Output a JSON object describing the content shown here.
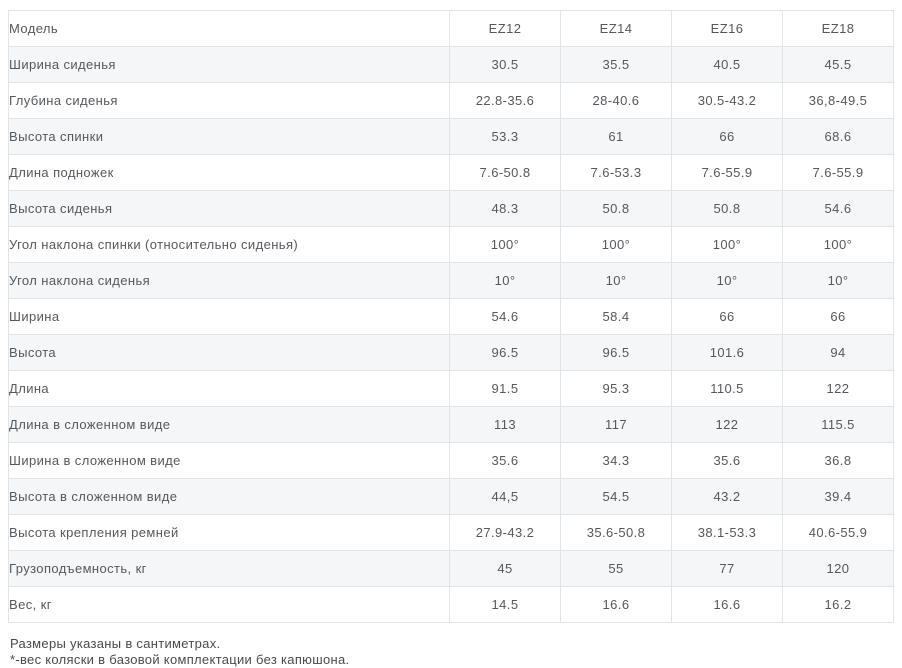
{
  "colors": {
    "stripe": "#f4f6f7",
    "border": "#e1e5e7",
    "text": "#55595d",
    "footnote": "#474b4e"
  },
  "table": {
    "header": {
      "label": "Модель",
      "columns": [
        "EZ12",
        "EZ14",
        "EZ16",
        "EZ18"
      ]
    },
    "rows": [
      {
        "label": "Ширина сиденья",
        "values": [
          "30.5",
          "35.5",
          "40.5",
          "45.5"
        ]
      },
      {
        "label": "Глубина сиденья",
        "values": [
          "22.8-35.6",
          "28-40.6",
          "30.5-43.2",
          "36,8-49.5"
        ]
      },
      {
        "label": "Высота спинки",
        "values": [
          "53.3",
          "61",
          "66",
          "68.6"
        ]
      },
      {
        "label": "Длина подножек",
        "values": [
          "7.6-50.8",
          "7.6-53.3",
          "7.6-55.9",
          "7.6-55.9"
        ]
      },
      {
        "label": "Высота сиденья",
        "values": [
          "48.3",
          "50.8",
          "50.8",
          "54.6"
        ]
      },
      {
        "label": "Угол наклона спинки (относительно сиденья)",
        "values": [
          "100°",
          "100°",
          "100°",
          "100°"
        ]
      },
      {
        "label": "Угол наклона сиденья",
        "values": [
          "10°",
          "10°",
          "10°",
          "10°"
        ]
      },
      {
        "label": "Ширина",
        "values": [
          "54.6",
          "58.4",
          "66",
          "66"
        ]
      },
      {
        "label": "Высота",
        "values": [
          "96.5",
          "96.5",
          "101.6",
          "94"
        ]
      },
      {
        "label": "Длина",
        "values": [
          "91.5",
          "95.3",
          "110.5",
          "122"
        ]
      },
      {
        "label": "Длина в сложенном виде",
        "values": [
          "113",
          "117",
          "122",
          "115.5"
        ]
      },
      {
        "label": "Ширина в сложенном виде",
        "values": [
          "35.6",
          "34.3",
          "35.6",
          "36.8"
        ]
      },
      {
        "label": "Высота в сложенном виде",
        "values": [
          "44,5",
          "54.5",
          "43.2",
          "39.4"
        ]
      },
      {
        "label": "Высота крепления ремней",
        "values": [
          "27.9-43.2",
          "35.6-50.8",
          "38.1-53.3",
          "40.6-55.9"
        ]
      },
      {
        "label": "Грузоподъемность, кг",
        "values": [
          "45",
          "55",
          "77",
          "120"
        ]
      },
      {
        "label": "Вес, кг",
        "values": [
          "14.5",
          "16.6",
          "16.6",
          "16.2"
        ]
      }
    ]
  },
  "footnotes": [
    "Размеры указаны в сантиметрах.",
    "*-вес коляски в базовой комплектации без капюшона."
  ]
}
